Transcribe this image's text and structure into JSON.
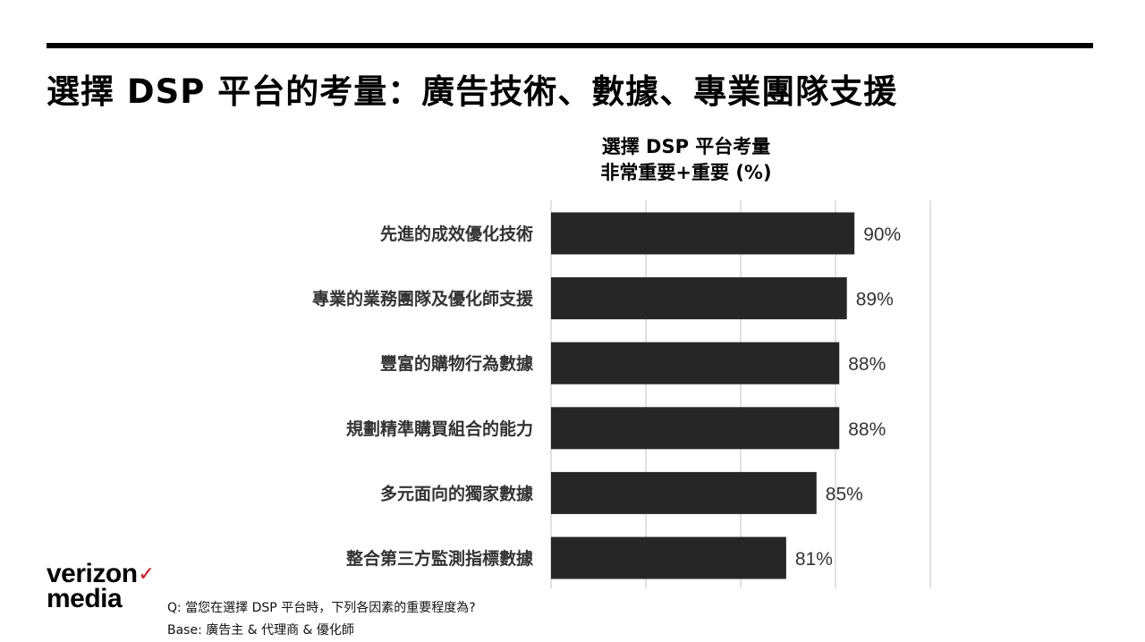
{
  "page": {
    "title": "選擇 DSP 平台的考量：廣告技術、數據、專業團隊支援"
  },
  "brand": {
    "line1": "verizon",
    "check": "✓",
    "line2": "media",
    "check_color": "#e0001b"
  },
  "footnote": {
    "question": "Q: 當您在選擇 DSP 平台時，下列各因素的重要程度為?",
    "base": "Base: 廣告主 & 代理商 & 優化師"
  },
  "chart_data": {
    "type": "bar",
    "orientation": "horizontal",
    "title": "選擇 DSP 平台考量",
    "subtitle": "非常重要+重要 (%)",
    "categories": [
      "先進的成效優化技術",
      "專業的業務團隊及優化師支援",
      "豐富的購物行為數據",
      "規劃精準購買組合的能力",
      "多元面向的獨家數據",
      "整合第三方監測指標數據"
    ],
    "values": [
      90,
      89,
      88,
      88,
      85,
      81
    ],
    "value_labels": [
      "90%",
      "89%",
      "88%",
      "88%",
      "85%",
      "81%"
    ],
    "xlim": [
      50,
      100
    ],
    "grid": true,
    "legend": "none",
    "bar_color": "#262626",
    "grid_color": "#d9d9d9"
  }
}
